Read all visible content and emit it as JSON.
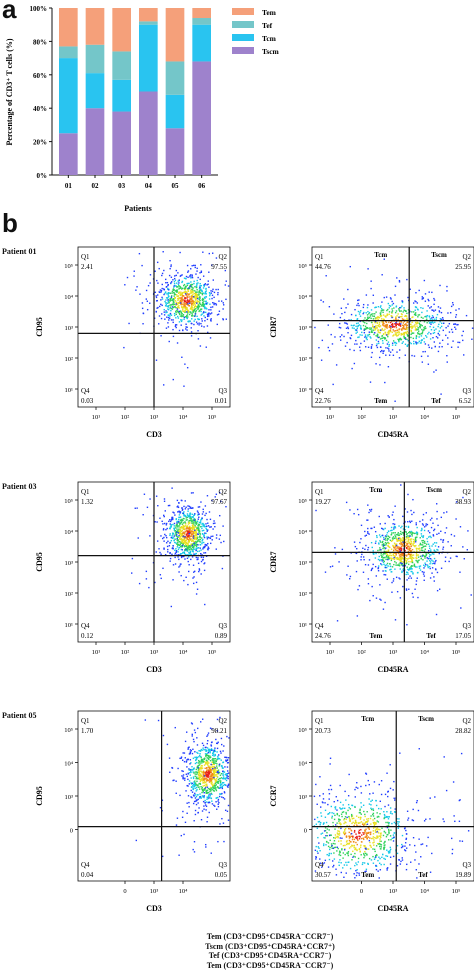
{
  "panels": {
    "a": "a",
    "b": "b"
  },
  "chart_data": {
    "type": "bar",
    "stacked": true,
    "ylabel": "Percentage of CD3⁺ T cells (%)",
    "xlabel": "Patients",
    "categories": [
      "01",
      "02",
      "03",
      "04",
      "05",
      "06"
    ],
    "yticks": [
      "0%",
      "20%",
      "40%",
      "60%",
      "80%",
      "100%"
    ],
    "ylim": [
      0,
      100
    ],
    "legend_position": "top-right",
    "series": [
      {
        "name": "Tscm",
        "color": "#9e82cc",
        "values": [
          25,
          40,
          38,
          50,
          28,
          68
        ]
      },
      {
        "name": "Tcm",
        "color": "#29c4f0",
        "values": [
          45,
          21,
          19,
          40,
          20,
          22
        ]
      },
      {
        "name": "Tef",
        "color": "#74c6c9",
        "values": [
          7,
          17,
          17,
          2,
          20,
          4
        ]
      },
      {
        "name": "Tem",
        "color": "#f5a07a",
        "values": [
          23,
          22,
          26,
          8,
          32,
          6
        ]
      }
    ]
  },
  "patients": [
    {
      "label": "Patient 01",
      "plots": [
        {
          "xlabel": "CD3",
          "ylabel": "CD95",
          "yticks": [
            "10⁵",
            "10⁴",
            "10³",
            "10²",
            "10¹"
          ],
          "xticks": [
            "10¹",
            "10²",
            "10³",
            "10⁴",
            "10⁵"
          ],
          "quadrants": {
            "q1": "Q1",
            "q1v": "2.41",
            "q2": "Q2",
            "q2v": "97.55",
            "q3": "Q3",
            "q3v": "0.01",
            "q4": "Q4",
            "q4v": "0.03"
          },
          "subsets": {
            "tl": "",
            "tr": "",
            "bl": "",
            "br": ""
          }
        },
        {
          "xlabel": "CD45RA",
          "ylabel": "CDR7",
          "yticks": [
            "10⁵",
            "10⁴",
            "10³",
            "10²",
            "10¹"
          ],
          "xticks": [
            "10¹",
            "10²",
            "10³",
            "10⁴",
            "10⁵"
          ],
          "quadrants": {
            "q1": "Q1",
            "q1v": "44.76",
            "q2": "Q2",
            "q2v": "25.95",
            "q3": "Q3",
            "q3v": "6.52",
            "q4": "Q4",
            "q4v": "22.76"
          },
          "subsets": {
            "tl": "Tcm",
            "tr": "Tscm",
            "bl": "Tem",
            "br": "Tef"
          }
        }
      ]
    },
    {
      "label": "Patient 03",
      "plots": [
        {
          "xlabel": "CD3",
          "ylabel": "CD95",
          "yticks": [
            "10⁵",
            "10⁴",
            "10³",
            "10²",
            "10¹"
          ],
          "xticks": [
            "10¹",
            "10²",
            "10³",
            "10⁴",
            "10⁵"
          ],
          "quadrants": {
            "q1": "Q1",
            "q1v": "1.32",
            "q2": "Q2",
            "q2v": "97.67",
            "q3": "Q3",
            "q3v": "0.89",
            "q4": "Q4",
            "q4v": "0.12"
          },
          "subsets": {
            "tl": "",
            "tr": "",
            "bl": "",
            "br": ""
          }
        },
        {
          "xlabel": "CD45RA",
          "ylabel": "CDR7",
          "yticks": [
            "10⁵",
            "10⁴",
            "10³",
            "10²",
            "10¹"
          ],
          "xticks": [
            "10¹",
            "10²",
            "10³",
            "10⁴",
            "10⁵"
          ],
          "quadrants": {
            "q1": "Q1",
            "q1v": "19.27",
            "q2": "Q2",
            "q2v": "38.93",
            "q3": "Q3",
            "q3v": "17.05",
            "q4": "Q4",
            "q4v": "24.76"
          },
          "subsets": {
            "tl": "Tcm",
            "tr": "Tscm",
            "bl": "Tem",
            "br": "Tef"
          }
        }
      ]
    },
    {
      "label": "Patient 05",
      "plots": [
        {
          "xlabel": "CD3",
          "ylabel": "CD95",
          "yticks": [
            "10⁵",
            "10⁴",
            "10³",
            "0",
            ""
          ],
          "xticks": [
            "",
            "0",
            "10³",
            "10⁴",
            ""
          ],
          "quadrants": {
            "q1": "Q1",
            "q1v": "1.70",
            "q2": "Q2",
            "q2v": "98.21",
            "q3": "Q3",
            "q3v": "0.05",
            "q4": "Q4",
            "q4v": "0.04"
          },
          "subsets": {
            "tl": "",
            "tr": "",
            "bl": "",
            "br": ""
          }
        },
        {
          "xlabel": "CD45RA",
          "ylabel": "CCR7",
          "yticks": [
            "10⁵",
            "10⁴",
            "10³",
            "0",
            ""
          ],
          "xticks": [
            "",
            "0",
            "10³",
            "10⁴",
            "10⁵"
          ],
          "quadrants": {
            "q1": "Q1",
            "q1v": "20.73",
            "q2": "Q2",
            "q2v": "28.82",
            "q3": "Q3",
            "q3v": "19.89",
            "q4": "Q4",
            "q4v": "30.57"
          },
          "subsets": {
            "tl": "Tcm",
            "tr": "Tscm",
            "bl": "Tem",
            "br": "Tef"
          }
        }
      ]
    }
  ],
  "footnotes": [
    "Tem (CD3⁺CD95⁺CD45RA⁻CCR7⁻)",
    "Tscm (CD3⁺CD95⁺CD45RA⁺CCR7⁺)",
    "Tef (CD3⁺CD95⁺CD45RA⁺CCR7⁻)",
    "Tem (CD3⁺CD95⁺CD45RA⁻CCR7⁻)"
  ]
}
